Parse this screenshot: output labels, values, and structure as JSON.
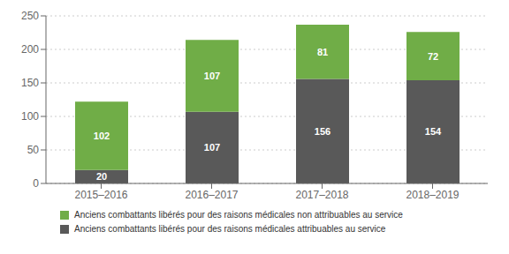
{
  "chart_data": {
    "type": "bar",
    "stacked": true,
    "categories": [
      "2015–2016",
      "2016–2017",
      "2017–2018",
      "2018–2019"
    ],
    "series": [
      {
        "name": "Anciens combattants libérés pour des raisons médicales attribuables au service",
        "color": "#595959",
        "values": [
          20,
          107,
          156,
          154
        ]
      },
      {
        "name": "Anciens combattants libérés pour des raisons médicales non attribuables au service",
        "color": "#70ad47",
        "values": [
          102,
          107,
          81,
          72
        ]
      }
    ],
    "ylim": [
      0,
      250
    ],
    "yticks": [
      0,
      50,
      100,
      150,
      200,
      250
    ],
    "grid": true,
    "data_labels": true,
    "legend": "bottom"
  }
}
